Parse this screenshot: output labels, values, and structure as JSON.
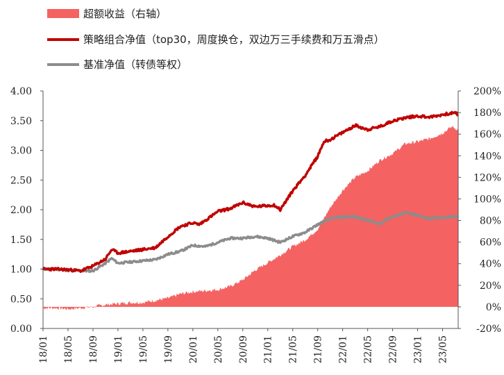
{
  "chart_data": {
    "type": "line",
    "title": "",
    "legend_placement": "top-left",
    "categories": [
      "18/01",
      "18/05",
      "18/09",
      "19/01",
      "19/05",
      "19/09",
      "20/01",
      "20/05",
      "20/09",
      "21/01",
      "21/05",
      "21/09",
      "22/01",
      "22/05",
      "22/09",
      "23/01",
      "23/05"
    ],
    "left_axis": {
      "ylim": [
        0,
        4
      ],
      "ticks": [
        "0.00",
        "0.50",
        "1.00",
        "1.50",
        "2.00",
        "2.50",
        "3.00",
        "3.50",
        "4.00"
      ]
    },
    "right_axis": {
      "ylim": [
        -20,
        200
      ],
      "ticks": [
        "-20%",
        "0%",
        "20%",
        "40%",
        "60%",
        "80%",
        "100%",
        "120%",
        "140%",
        "160%",
        "180%",
        "200%"
      ]
    },
    "series": [
      {
        "name": "超额收益（右轴）",
        "kind": "area",
        "axis": "right",
        "color": "#f46262",
        "x": [
          0,
          2,
          4,
          6,
          8,
          10,
          12,
          14,
          16,
          18,
          20,
          22,
          24,
          26,
          28,
          30,
          32,
          34,
          36,
          38,
          40,
          42,
          44,
          46,
          48,
          50,
          52,
          54,
          56,
          58,
          60,
          62,
          64,
          65.5,
          66.5
        ],
        "values": [
          -1,
          -1,
          -2,
          -1,
          0,
          2,
          3,
          4,
          4,
          6,
          8,
          12,
          14,
          15,
          16,
          19,
          25,
          34,
          41,
          48,
          56,
          62,
          72,
          92,
          108,
          120,
          126,
          136,
          142,
          151,
          153,
          156,
          161,
          167,
          164
        ]
      },
      {
        "name": "策略组合净值（top30，周度换仓，双边万三手续费和万五滑点）",
        "kind": "line",
        "axis": "left",
        "color": "#c00000",
        "x": [
          0,
          2,
          4,
          6,
          8,
          10,
          11,
          12,
          14,
          16,
          18,
          20,
          22,
          24,
          25,
          26,
          28,
          30,
          32,
          34,
          36,
          37,
          38,
          40,
          42,
          44,
          45,
          46,
          48,
          50,
          52,
          54,
          56,
          57,
          58,
          60,
          62,
          64,
          65,
          66,
          66.5
        ],
        "values": [
          1.0,
          1.0,
          0.99,
          0.97,
          1.05,
          1.17,
          1.33,
          1.27,
          1.3,
          1.33,
          1.36,
          1.55,
          1.72,
          1.78,
          1.75,
          1.82,
          1.97,
          2.02,
          2.12,
          2.05,
          2.07,
          2.08,
          2.0,
          2.32,
          2.58,
          2.9,
          3.15,
          3.18,
          3.3,
          3.42,
          3.35,
          3.4,
          3.5,
          3.52,
          3.55,
          3.58,
          3.56,
          3.6,
          3.62,
          3.63,
          3.6
        ]
      },
      {
        "name": "基准净值（转债等权）",
        "kind": "line",
        "axis": "left",
        "color": "#8c8c8c",
        "x": [
          0,
          2,
          4,
          6,
          8,
          10,
          11,
          12,
          14,
          16,
          18,
          20,
          22,
          24,
          26,
          28,
          30,
          32,
          34,
          36,
          38,
          40,
          42,
          44,
          46,
          48,
          50,
          52,
          54,
          55,
          56,
          58,
          60,
          62,
          64,
          66,
          66.5
        ],
        "values": [
          1.0,
          1.0,
          0.98,
          0.97,
          0.97,
          1.1,
          1.18,
          1.1,
          1.12,
          1.14,
          1.16,
          1.25,
          1.3,
          1.4,
          1.38,
          1.45,
          1.52,
          1.52,
          1.55,
          1.52,
          1.45,
          1.55,
          1.62,
          1.75,
          1.85,
          1.88,
          1.88,
          1.82,
          1.76,
          1.84,
          1.88,
          1.95,
          1.9,
          1.85,
          1.87,
          1.88,
          1.88
        ]
      }
    ]
  }
}
